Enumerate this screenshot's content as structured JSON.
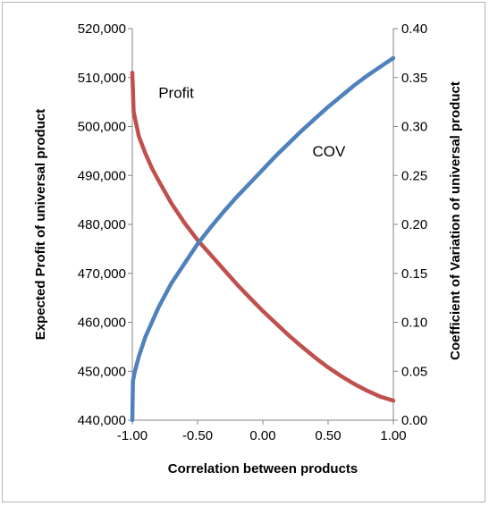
{
  "chart_data": {
    "type": "line",
    "xlabel": "Correlation between products",
    "ylabel_left": "Expected Profit of universal product",
    "ylabel_right": "Coefficient of Variation of universal product",
    "xlim": [
      -1.0,
      1.0
    ],
    "xticks": [
      -1.0,
      -0.5,
      0.0,
      0.5,
      1.0
    ],
    "xtick_labels": [
      "-1.00",
      "-0.50",
      "0.00",
      "0.50",
      "1.00"
    ],
    "ylim_left": [
      440000,
      520000
    ],
    "yticks_left": [
      440000,
      450000,
      460000,
      470000,
      480000,
      490000,
      500000,
      510000,
      520000
    ],
    "ytick_labels_left": [
      "440,000",
      "450,000",
      "460,000",
      "470,000",
      "480,000",
      "490,000",
      "500,000",
      "510,000",
      "520,000"
    ],
    "ylim_right": [
      0.0,
      0.4
    ],
    "yticks_right": [
      0.0,
      0.05,
      0.1,
      0.15,
      0.2,
      0.25,
      0.3,
      0.35,
      0.4
    ],
    "ytick_labels_right": [
      "0.00",
      "0.05",
      "0.10",
      "0.15",
      "0.20",
      "0.25",
      "0.30",
      "0.35",
      "0.40"
    ],
    "grid": false,
    "legend": "none",
    "annotations": [
      {
        "text": "Profit",
        "x": -0.8,
        "y_left": 505800
      },
      {
        "text": "COV",
        "x": 0.38,
        "y_left": 493900
      }
    ],
    "series": [
      {
        "axis": "left",
        "color": "#c0504d",
        "x": [
          -1.0,
          -0.99,
          -0.97,
          -0.95,
          -0.9,
          -0.85,
          -0.8,
          -0.7,
          -0.6,
          -0.5,
          -0.4,
          -0.3,
          -0.2,
          -0.1,
          0.0,
          0.1,
          0.2,
          0.3,
          0.4,
          0.5,
          0.6,
          0.7,
          0.8,
          0.9,
          1.0
        ],
        "y": [
          511000,
          503000,
          500500,
          498000,
          494500,
          491500,
          489000,
          484300,
          480300,
          476800,
          473800,
          470800,
          467800,
          465000,
          462300,
          459800,
          457300,
          455000,
          452800,
          450800,
          449000,
          447400,
          446000,
          444800,
          444000
        ]
      },
      {
        "axis": "right",
        "color": "#4f81bd",
        "x": [
          -1.0,
          -0.995,
          -0.98,
          -0.95,
          -0.9,
          -0.85,
          -0.8,
          -0.7,
          -0.6,
          -0.5,
          -0.4,
          -0.3,
          -0.2,
          -0.1,
          0.0,
          0.1,
          0.2,
          0.3,
          0.4,
          0.5,
          0.6,
          0.7,
          0.8,
          0.9,
          1.0
        ],
        "y": [
          0.0,
          0.04,
          0.05,
          0.065,
          0.085,
          0.1,
          0.115,
          0.14,
          0.16,
          0.18,
          0.197,
          0.213,
          0.228,
          0.242,
          0.256,
          0.27,
          0.283,
          0.296,
          0.308,
          0.32,
          0.331,
          0.342,
          0.352,
          0.361,
          0.37
        ]
      }
    ]
  }
}
